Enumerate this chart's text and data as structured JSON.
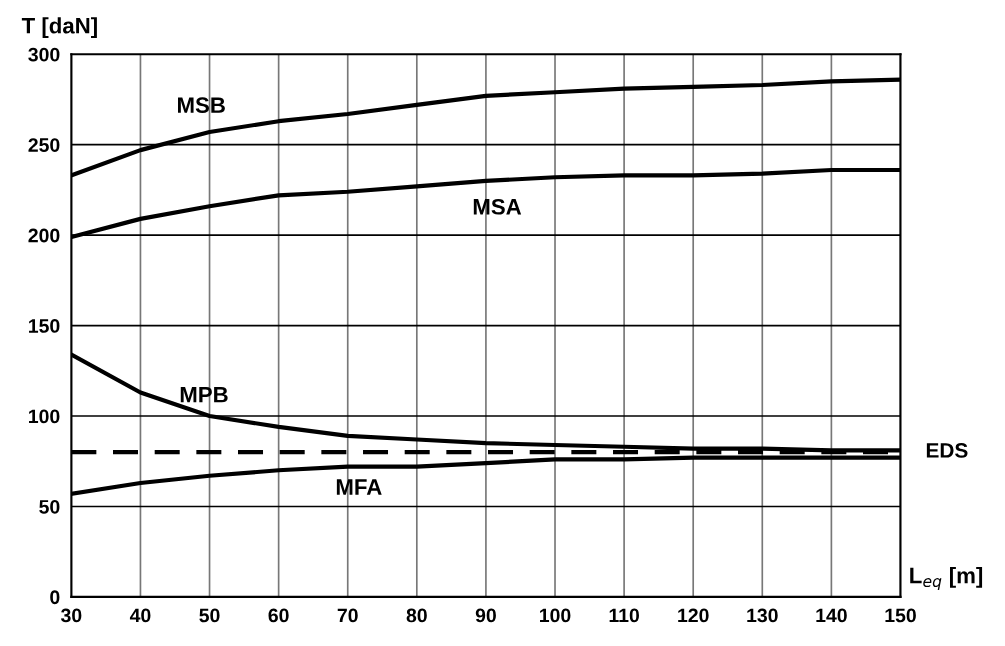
{
  "chart_data": {
    "type": "line",
    "xlabel": "L$_{eq}$ [m]",
    "ylabel": "T [daN]",
    "x": [
      30,
      40,
      50,
      60,
      70,
      80,
      90,
      100,
      110,
      120,
      130,
      140,
      150
    ],
    "series": [
      {
        "name": "MSB",
        "color": "#000000",
        "values": [
          233,
          247,
          257,
          263,
          267,
          272,
          277,
          279,
          281,
          282,
          283,
          285,
          286
        ]
      },
      {
        "name": "MSA",
        "color": "#000000",
        "values": [
          199,
          209,
          216,
          222,
          224,
          227,
          230,
          232,
          233,
          233,
          234,
          236,
          236
        ]
      },
      {
        "name": "MPB",
        "color": "#000000",
        "values": [
          134,
          113,
          100,
          94,
          89,
          87,
          85,
          84,
          83,
          82,
          82,
          81,
          81
        ]
      },
      {
        "name": "MFA",
        "color": "#000000",
        "values": [
          57,
          63,
          67,
          70,
          72,
          72,
          74,
          76,
          76,
          77,
          77,
          77,
          77
        ]
      }
    ],
    "ref_lines": [
      {
        "axis": "y",
        "value": 80,
        "label": "EDS",
        "color": "#000000",
        "line_style": "dashed"
      }
    ],
    "xlim": [
      30,
      150
    ],
    "ylim": [
      0,
      300
    ],
    "xticks": [
      30,
      40,
      50,
      60,
      70,
      80,
      90,
      100,
      110,
      120,
      130,
      140,
      150
    ],
    "yticks": [
      0,
      50,
      100,
      150,
      200,
      250,
      300
    ],
    "grid": true,
    "legend": false,
    "marker": "none",
    "line_style": "solid"
  }
}
